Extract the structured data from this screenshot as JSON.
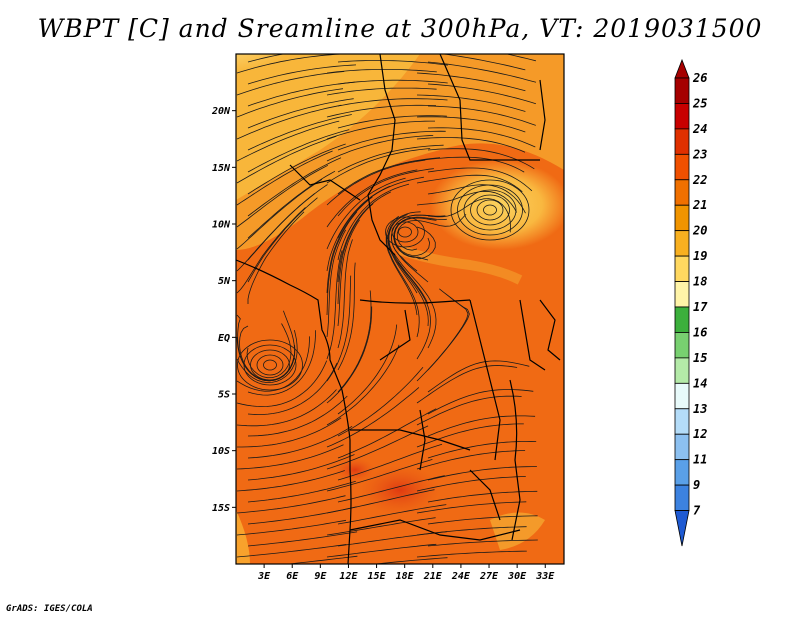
{
  "title": "WBPT [C] and Sreamline at 300hPa, VT: 2019031500",
  "footer": "GrADS: IGES/COLA",
  "map": {
    "lat_labels": [
      "20N",
      "15N",
      "10N",
      "5N",
      "EQ",
      "5S",
      "10S",
      "15S"
    ],
    "lat_values": [
      20,
      15,
      10,
      5,
      0,
      -5,
      -10,
      -15
    ],
    "lon_labels": [
      "3E",
      "6E",
      "9E",
      "12E",
      "15E",
      "18E",
      "21E",
      "24E",
      "27E",
      "30E",
      "33E"
    ],
    "lon_values": [
      3,
      6,
      9,
      12,
      15,
      18,
      21,
      24,
      27,
      30,
      33
    ],
    "lon_range": [
      0,
      35
    ],
    "lat_range": [
      -20,
      25
    ]
  },
  "colorbar": {
    "labels": [
      "26",
      "25",
      "24",
      "23",
      "22",
      "21",
      "20",
      "19",
      "18",
      "17",
      "16",
      "15",
      "14",
      "13",
      "12",
      "11",
      "9",
      "7"
    ],
    "colors": [
      "#a50000",
      "#c80000",
      "#e03000",
      "#f05000",
      "#f07000",
      "#f09400",
      "#f8b020",
      "#ffd860",
      "#fff4a8",
      "#3cb03c",
      "#78d070",
      "#b4eaa8",
      "#e8fafa",
      "#b4dcf8",
      "#8cc0f0",
      "#5aa0e8",
      "#3c82e0",
      "#1e5ad2"
    ]
  }
}
